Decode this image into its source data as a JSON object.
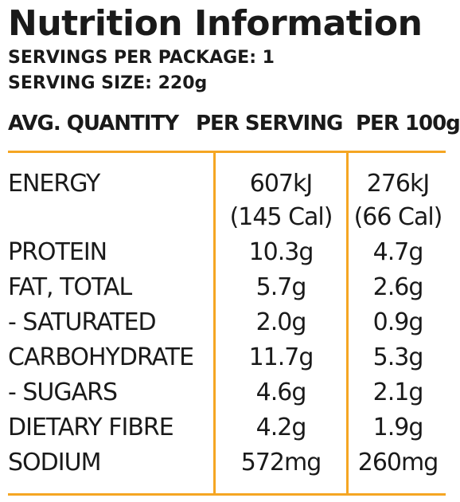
{
  "title": "Nutrition Information",
  "servings_per_package": "SERVINGS PER PACKAGE: 1",
  "serving_size": "SERVING SIZE: 220g",
  "headers": {
    "quantity": "AVG. QUANTITY",
    "per_serving": "PER SERVING",
    "per_100g": "PER 100g"
  },
  "accent_color": "#f5a623",
  "rows": [
    {
      "name": "ENERGY",
      "per_serving": "607kJ",
      "per_serving_sub": "(145 Cal)",
      "per_100g": "276kJ",
      "per_100g_sub": "(66 Cal)"
    },
    {
      "name": "PROTEIN",
      "per_serving": "10.3g",
      "per_100g": "4.7g"
    },
    {
      "name": "FAT, TOTAL",
      "per_serving": "5.7g",
      "per_100g": "2.6g"
    },
    {
      "name": "- SATURATED",
      "per_serving": "2.0g",
      "per_100g": "0.9g"
    },
    {
      "name": "CARBOHYDRATE",
      "per_serving": "11.7g",
      "per_100g": "5.3g"
    },
    {
      "name": "- SUGARS",
      "per_serving": "4.6g",
      "per_100g": "2.1g"
    },
    {
      "name": "DIETARY FIBRE",
      "per_serving": "4.2g",
      "per_100g": "1.9g"
    },
    {
      "name": "SODIUM",
      "per_serving": "572mg",
      "per_100g": "260mg"
    }
  ]
}
